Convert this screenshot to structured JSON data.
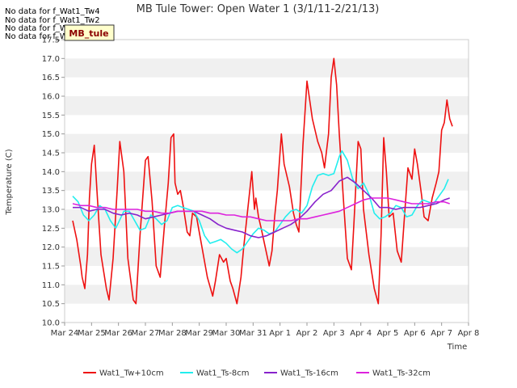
{
  "no_data_messages": [
    "No data for f_Wat1_Tw4",
    "No data for f_Wat1_Tw2",
    "No data for f_Wat1_Ts2",
    "No data for f_Wat1_Tw"
  ],
  "badge_label": "MB_tule",
  "colors": {
    "Wat1_Tw+10cm": "#ee1111",
    "Wat1_Ts-8cm": "#22eeee",
    "Wat1_Ts-16cm": "#8822cc",
    "Wat1_Ts-32cm": "#dd22dd",
    "band": "#f0f0f0",
    "badge_bg": "#ffffcc"
  },
  "chart_data": {
    "type": "line",
    "title": "MB Tule Tower: Open Water 1 (3/1/11-2/21/13)",
    "xlabel": "Time",
    "ylabel": "Temperature (C)",
    "xlim": [
      0,
      15
    ],
    "ylim": [
      10.0,
      17.5
    ],
    "ticks_y": [
      "10.0",
      "10.5",
      "11.0",
      "11.5",
      "12.0",
      "12.5",
      "13.0",
      "13.5",
      "14.0",
      "14.5",
      "15.0",
      "15.5",
      "16.0",
      "16.5",
      "17.0",
      "17.5"
    ],
    "ticks_x": [
      "Mar 24",
      "Mar 25",
      "Mar 26",
      "Mar 27",
      "Mar 28",
      "Mar 29",
      "Mar 30",
      "Mar 31",
      "Apr 1",
      "Apr 2",
      "Apr 3",
      "Apr 4",
      "Apr 5",
      "Apr 6",
      "Apr 7",
      "Apr 8"
    ],
    "legend_position": "bottom",
    "grid": "horizontal bands",
    "series": [
      {
        "name": "Wat1_Tw+10cm",
        "x": [
          0.3,
          0.45,
          0.6,
          0.65,
          0.75,
          0.85,
          0.92,
          1.0,
          1.1,
          1.2,
          1.35,
          1.55,
          1.65,
          1.8,
          1.95,
          2.05,
          2.2,
          2.35,
          2.55,
          2.65,
          2.8,
          3.0,
          3.1,
          3.25,
          3.4,
          3.55,
          3.7,
          3.85,
          3.95,
          4.05,
          4.1,
          4.2,
          4.3,
          4.4,
          4.55,
          4.65,
          4.75,
          4.9,
          5.1,
          5.3,
          5.5,
          5.6,
          5.75,
          5.9,
          6.0,
          6.15,
          6.25,
          6.4,
          6.55,
          6.65,
          6.8,
          6.95,
          7.05,
          7.1,
          7.2,
          7.3,
          7.45,
          7.6,
          7.7,
          7.8,
          7.9,
          8.05,
          8.15,
          8.35,
          8.5,
          8.6,
          8.7,
          8.85,
          9.0,
          9.2,
          9.4,
          9.55,
          9.65,
          9.8,
          9.9,
          10.0,
          10.1,
          10.2,
          10.35,
          10.5,
          10.65,
          10.75,
          10.9,
          11.0,
          11.1,
          11.3,
          11.5,
          11.65,
          11.75,
          11.85,
          11.95,
          12.05,
          12.2,
          12.35,
          12.5,
          12.6,
          12.75,
          12.9,
          13.0,
          13.1,
          13.25,
          13.35,
          13.5,
          13.65,
          13.8,
          13.9,
          14.0,
          14.1,
          14.2,
          14.3,
          14.4
        ],
        "y": [
          12.7,
          12.2,
          11.5,
          11.2,
          10.9,
          11.8,
          13.3,
          14.2,
          14.7,
          13.5,
          11.8,
          10.9,
          10.6,
          11.7,
          13.5,
          14.8,
          14.0,
          11.7,
          10.6,
          10.5,
          12.3,
          14.3,
          14.4,
          13.2,
          11.5,
          11.2,
          12.5,
          13.7,
          14.9,
          15.0,
          13.7,
          13.4,
          13.5,
          13.1,
          12.4,
          12.3,
          12.9,
          12.8,
          12.0,
          11.2,
          10.7,
          11.1,
          11.8,
          11.6,
          11.7,
          11.1,
          10.9,
          10.5,
          11.2,
          12.0,
          13.0,
          14.0,
          13.0,
          13.3,
          12.8,
          12.5,
          12.0,
          11.5,
          11.9,
          12.8,
          13.5,
          15.0,
          14.2,
          13.6,
          12.9,
          12.6,
          12.4,
          14.7,
          16.4,
          15.4,
          14.8,
          14.5,
          14.1,
          15.0,
          16.5,
          17.0,
          16.3,
          15.0,
          13.3,
          11.7,
          11.4,
          12.7,
          14.8,
          14.6,
          13.0,
          11.8,
          10.9,
          10.5,
          12.3,
          14.9,
          14.0,
          12.8,
          12.9,
          11.9,
          11.6,
          12.6,
          14.1,
          13.8,
          14.6,
          14.2,
          13.4,
          12.8,
          12.7,
          13.3,
          13.7,
          14.0,
          15.1,
          15.3,
          15.9,
          15.4,
          15.2
        ]
      },
      {
        "name": "Wat1_Ts-8cm",
        "x": [
          0.3,
          0.5,
          0.7,
          0.9,
          1.1,
          1.3,
          1.5,
          1.7,
          1.9,
          2.0,
          2.2,
          2.4,
          2.6,
          2.8,
          3.0,
          3.2,
          3.4,
          3.6,
          3.8,
          4.0,
          4.2,
          4.4,
          4.6,
          4.8,
          5.0,
          5.2,
          5.4,
          5.6,
          5.8,
          6.0,
          6.2,
          6.4,
          6.6,
          6.8,
          7.0,
          7.2,
          7.4,
          7.6,
          7.8,
          8.0,
          8.2,
          8.4,
          8.6,
          8.8,
          9.0,
          9.2,
          9.4,
          9.6,
          9.8,
          10.0,
          10.2,
          10.3,
          10.5,
          10.7,
          10.9,
          11.1,
          11.3,
          11.5,
          11.7,
          11.9,
          12.1,
          12.3,
          12.5,
          12.7,
          12.9,
          13.1,
          13.3,
          13.5,
          13.7,
          13.9,
          14.1,
          14.25
        ],
        "y": [
          13.35,
          13.2,
          12.85,
          12.7,
          12.85,
          13.1,
          13.0,
          12.7,
          12.5,
          12.65,
          12.95,
          12.95,
          12.7,
          12.45,
          12.5,
          12.85,
          12.75,
          12.6,
          12.7,
          13.05,
          13.1,
          13.05,
          13.0,
          12.95,
          12.7,
          12.3,
          12.1,
          12.15,
          12.2,
          12.1,
          11.95,
          11.85,
          11.95,
          12.15,
          12.35,
          12.5,
          12.45,
          12.35,
          12.4,
          12.6,
          12.8,
          12.95,
          13.0,
          12.9,
          13.1,
          13.6,
          13.9,
          13.95,
          13.9,
          13.95,
          14.4,
          14.55,
          14.3,
          13.8,
          13.55,
          13.7,
          13.4,
          12.9,
          12.75,
          12.8,
          12.9,
          13.1,
          13.05,
          12.8,
          12.85,
          13.1,
          13.25,
          13.2,
          13.15,
          13.35,
          13.55,
          13.8
        ]
      },
      {
        "name": "Wat1_Ts-16cm",
        "x": [
          0.3,
          0.6,
          0.9,
          1.2,
          1.5,
          1.8,
          2.1,
          2.4,
          2.7,
          3.0,
          3.3,
          3.6,
          3.9,
          4.2,
          4.5,
          4.8,
          5.1,
          5.4,
          5.7,
          6.0,
          6.3,
          6.6,
          6.9,
          7.2,
          7.5,
          7.8,
          8.1,
          8.4,
          8.7,
          9.0,
          9.3,
          9.6,
          9.9,
          10.2,
          10.5,
          10.8,
          11.1,
          11.4,
          11.7,
          12.0,
          12.3,
          12.6,
          12.9,
          13.2,
          13.5,
          13.8,
          14.1,
          14.3
        ],
        "y": [
          13.05,
          13.05,
          12.95,
          13.0,
          13.0,
          12.9,
          12.85,
          12.9,
          12.85,
          12.75,
          12.8,
          12.85,
          12.9,
          12.95,
          12.95,
          12.95,
          12.85,
          12.75,
          12.6,
          12.5,
          12.45,
          12.4,
          12.3,
          12.25,
          12.3,
          12.4,
          12.5,
          12.6,
          12.75,
          12.95,
          13.2,
          13.4,
          13.5,
          13.75,
          13.85,
          13.7,
          13.5,
          13.3,
          13.05,
          13.05,
          13.0,
          13.05,
          13.05,
          13.05,
          13.1,
          13.15,
          13.25,
          13.3
        ]
      },
      {
        "name": "Wat1_Ts-32cm",
        "x": [
          0.3,
          0.6,
          0.9,
          1.2,
          1.5,
          1.8,
          2.1,
          2.4,
          2.7,
          3.0,
          3.3,
          3.6,
          3.9,
          4.2,
          4.5,
          4.8,
          5.1,
          5.4,
          5.7,
          6.0,
          6.3,
          6.6,
          6.9,
          7.2,
          7.5,
          7.8,
          8.1,
          8.4,
          8.7,
          9.0,
          9.3,
          9.6,
          9.9,
          10.2,
          10.5,
          10.8,
          11.1,
          11.4,
          11.7,
          12.0,
          12.3,
          12.6,
          12.9,
          13.2,
          13.5,
          13.8,
          14.1,
          14.3
        ],
        "y": [
          13.15,
          13.1,
          13.1,
          13.05,
          13.05,
          13.0,
          13.0,
          13.0,
          13.0,
          12.95,
          12.95,
          12.9,
          12.9,
          12.95,
          12.95,
          12.95,
          12.95,
          12.9,
          12.9,
          12.85,
          12.85,
          12.8,
          12.8,
          12.75,
          12.7,
          12.7,
          12.7,
          12.7,
          12.75,
          12.75,
          12.8,
          12.85,
          12.9,
          12.95,
          13.05,
          13.15,
          13.25,
          13.3,
          13.3,
          13.3,
          13.25,
          13.2,
          13.15,
          13.15,
          13.15,
          13.2,
          13.2,
          13.15
        ]
      }
    ]
  }
}
